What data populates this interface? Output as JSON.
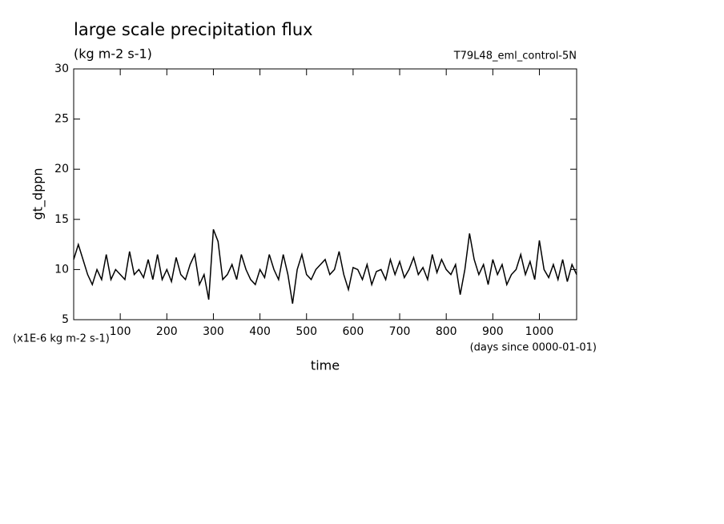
{
  "chart_data": {
    "type": "line",
    "title": "large scale precipitation flux",
    "subtitle": "(kg m-2 s-1)",
    "annotation": "T79L48_eml_control-5N",
    "ylabel": "gt_dppn",
    "xlabel": "time",
    "yunit_note": "(x1E-6 kg m-2 s-1)",
    "xunit_note": "(days since 0000-01-01)",
    "xlim": [
      0,
      1080
    ],
    "ylim": [
      5,
      30
    ],
    "xticks": [
      100,
      200,
      300,
      400,
      500,
      600,
      700,
      800,
      900,
      1000
    ],
    "yticks": [
      5,
      10,
      15,
      20,
      25,
      30
    ],
    "x": [
      0,
      10,
      20,
      30,
      40,
      50,
      60,
      70,
      80,
      90,
      100,
      110,
      120,
      130,
      140,
      150,
      160,
      170,
      180,
      190,
      200,
      210,
      220,
      230,
      240,
      250,
      260,
      270,
      280,
      290,
      300,
      310,
      320,
      330,
      340,
      350,
      360,
      370,
      380,
      390,
      400,
      410,
      420,
      430,
      440,
      450,
      460,
      470,
      480,
      490,
      500,
      510,
      520,
      530,
      540,
      550,
      560,
      570,
      580,
      590,
      600,
      610,
      620,
      630,
      640,
      650,
      660,
      670,
      680,
      690,
      700,
      710,
      720,
      730,
      740,
      750,
      760,
      770,
      780,
      790,
      800,
      810,
      820,
      830,
      840,
      850,
      860,
      870,
      880,
      890,
      900,
      910,
      920,
      930,
      940,
      950,
      960,
      970,
      980,
      990,
      1000,
      1010,
      1020,
      1030,
      1040,
      1050,
      1060,
      1070,
      1080
    ],
    "series": [
      {
        "color": "#000000",
        "values": [
          11,
          12.5,
          11,
          9.5,
          8.5,
          10,
          9,
          11.5,
          9,
          10,
          9.5,
          9,
          11.8,
          9.5,
          10,
          9.2,
          11,
          9,
          11.5,
          9,
          10,
          8.8,
          11.2,
          9.5,
          9,
          10.5,
          11.5,
          8.5,
          9.5,
          7,
          14,
          12.8,
          9,
          9.5,
          10.5,
          9,
          11.5,
          10,
          9,
          8.5,
          10,
          9.2,
          11.5,
          10,
          9,
          11.5,
          9.5,
          6.6,
          10,
          11.5,
          9.5,
          9,
          10,
          10.5,
          11,
          9.5,
          10,
          11.8,
          9.5,
          8,
          10.2,
          10,
          9,
          10.5,
          8.5,
          9.8,
          10,
          9,
          11,
          9.5,
          10.8,
          9.2,
          10,
          11.2,
          9.5,
          10.2,
          9,
          11.5,
          9.7,
          11,
          10,
          9.5,
          10.5,
          7.5,
          10,
          13.6,
          11,
          9.5,
          10.5,
          8.5,
          11,
          9.5,
          10.5,
          8.5,
          9.5,
          10,
          11.5,
          9.5,
          10.8,
          9,
          12.9,
          10,
          9.2,
          10.5,
          9,
          11,
          8.8,
          10.5,
          9.5
        ]
      }
    ]
  }
}
